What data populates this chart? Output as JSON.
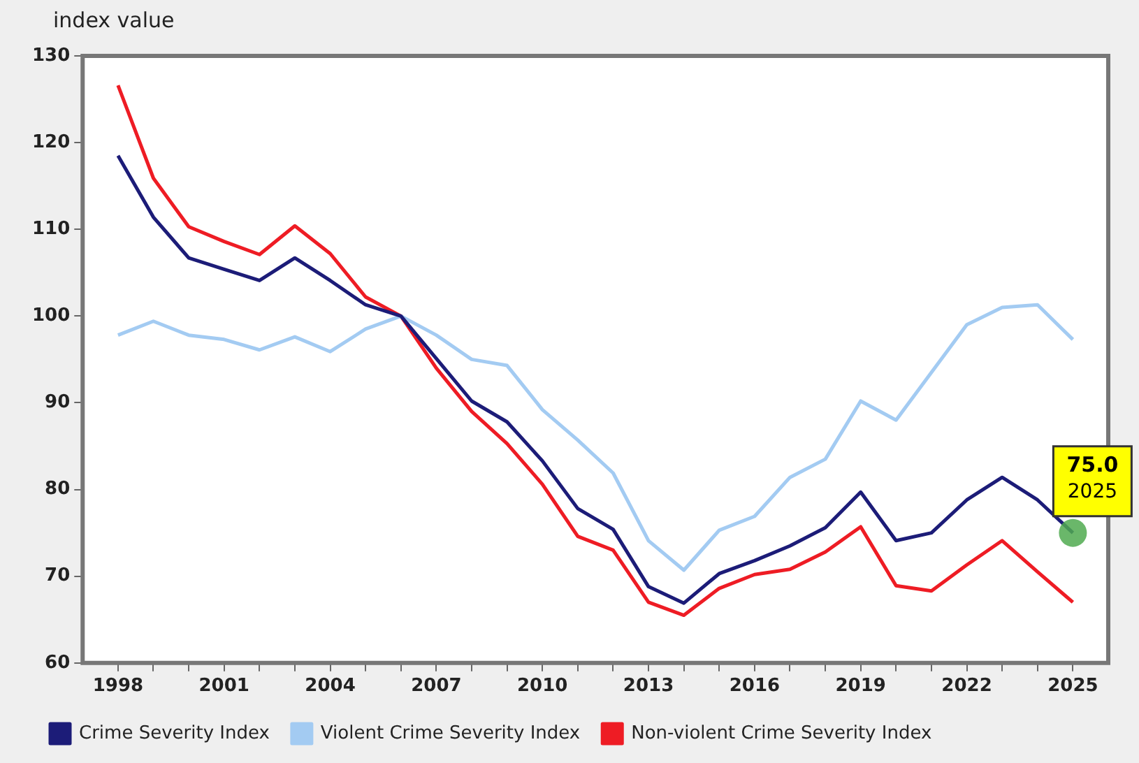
{
  "chart_data": {
    "type": "line",
    "ylabel": "index value",
    "x": [
      1998,
      1999,
      2000,
      2001,
      2002,
      2003,
      2004,
      2005,
      2006,
      2007,
      2008,
      2009,
      2010,
      2011,
      2012,
      2013,
      2014,
      2015,
      2016,
      2017,
      2018,
      2019,
      2020,
      2021,
      2022,
      2023,
      2024,
      2025
    ],
    "series": [
      {
        "name": "Crime Severity Index",
        "color": "#1c1c78",
        "values": [
          118.5,
          111.4,
          106.7,
          105.4,
          104.1,
          106.7,
          104.1,
          101.3,
          100,
          95.1,
          90.2,
          87.8,
          83.3,
          77.8,
          75.4,
          68.8,
          66.9,
          70.3,
          71.8,
          73.5,
          75.6,
          79.7,
          74.1,
          75.0,
          78.8,
          81.4,
          78.8,
          75.0
        ]
      },
      {
        "name": "Violent Crime Severity Index",
        "color": "#a3cbf2",
        "values": [
          97.8,
          99.4,
          97.8,
          97.3,
          96.1,
          97.6,
          95.9,
          98.5,
          100,
          97.8,
          95.0,
          94.3,
          89.2,
          85.7,
          81.9,
          74.1,
          70.7,
          75.3,
          76.9,
          81.4,
          83.5,
          90.2,
          88.0,
          93.5,
          99.0,
          101.0,
          101.3,
          97.3
        ]
      },
      {
        "name": "Non-violent Crime Severity Index",
        "color": "#ee1c24",
        "values": [
          126.6,
          115.9,
          110.3,
          108.6,
          107.1,
          110.4,
          107.2,
          102.2,
          100,
          94.0,
          89.0,
          85.3,
          80.6,
          74.6,
          73.0,
          67.0,
          65.5,
          68.6,
          70.2,
          70.8,
          72.8,
          75.7,
          68.9,
          68.3,
          71.3,
          74.1,
          70.5,
          67.0
        ]
      }
    ],
    "xlim": [
      1997,
      2026
    ],
    "xticks": [
      1998,
      {
        "value": 1999,
        "label": null
      },
      {
        "value": 2000,
        "label": null
      },
      2001,
      {
        "value": 2002,
        "label": null
      },
      {
        "value": 2003,
        "label": null
      },
      2004,
      {
        "value": 2005,
        "label": null
      },
      {
        "value": 2006,
        "label": null
      },
      2007,
      {
        "value": 2008,
        "label": null
      },
      {
        "value": 2009,
        "label": null
      },
      2010,
      {
        "value": 2011,
        "label": null
      },
      {
        "value": 2012,
        "label": null
      },
      2013,
      {
        "value": 2014,
        "label": null
      },
      {
        "value": 2015,
        "label": null
      },
      2016,
      {
        "value": 2017,
        "label": null
      },
      {
        "value": 2018,
        "label": null
      },
      2019,
      {
        "value": 2020,
        "label": null
      },
      {
        "value": 2021,
        "label": null
      },
      2022,
      {
        "value": 2023,
        "label": null
      },
      {
        "value": 2024,
        "label": null
      },
      2025
    ],
    "ylim": [
      60,
      130
    ],
    "yticks": [
      60,
      70,
      80,
      90,
      100,
      110,
      120,
      130
    ],
    "grid": false,
    "legend": "bottom",
    "marker": "none",
    "line_style": "solid",
    "annotations": [
      {
        "text": "75.0",
        "x": 2025,
        "y": 75.0
      },
      {
        "text": "2025",
        "x": 2025,
        "y": 75.0
      }
    ]
  }
}
